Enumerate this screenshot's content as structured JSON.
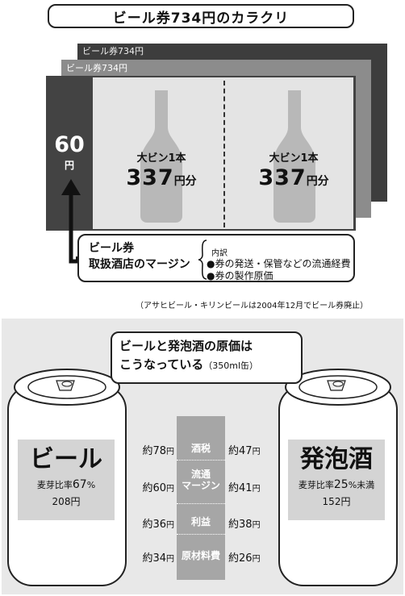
{
  "top": {
    "title": "ビール券734円のカラクリ",
    "ticket_label": "ビール券734円",
    "margin_value": "60",
    "margin_unit": "円",
    "bottle_label": "大ビン1本",
    "bottle_price": "337",
    "bottle_unit": "円分",
    "margin_title_line1": "ビール券",
    "margin_title_line2": "取扱酒店のマージン",
    "breakdown_heading": "内訳",
    "breakdown_items": [
      "●券の発送・保管などの流通経費",
      "●券の製作原価"
    ],
    "note": "（アサヒビール・キリンビールは2004年12月でビール券廃止）"
  },
  "bottom": {
    "title_line1": "ビールと発泡酒の原価は",
    "title_line2": "こうなっている",
    "title_note": "（350ml缶）",
    "beer": {
      "name": "ビール",
      "ratio_prefix": "麦芽比率",
      "ratio_value": "67",
      "ratio_suffix": "%",
      "price": "208円"
    },
    "happoshu": {
      "name": "発泡酒",
      "ratio_prefix": "麦芽比率",
      "ratio_value": "25",
      "ratio_suffix": "%未満",
      "price": "152円"
    },
    "categories": [
      {
        "label": "酒税",
        "beer_prefix": "約",
        "beer_value": "78",
        "beer_unit": "円",
        "hap_prefix": "約",
        "hap_value": "47",
        "hap_unit": "円"
      },
      {
        "label": "流通\nマージン",
        "beer_prefix": "約",
        "beer_value": "60",
        "beer_unit": "円",
        "hap_prefix": "約",
        "hap_value": "41",
        "hap_unit": "円"
      },
      {
        "label": "利益",
        "beer_prefix": "約",
        "beer_value": "36",
        "beer_unit": "円",
        "hap_prefix": "約",
        "hap_value": "38",
        "hap_unit": "円"
      },
      {
        "label": "原材料費",
        "beer_prefix": "約",
        "beer_value": "34",
        "beer_unit": "円",
        "hap_prefix": "約",
        "hap_value": "26",
        "hap_unit": "円"
      }
    ]
  }
}
